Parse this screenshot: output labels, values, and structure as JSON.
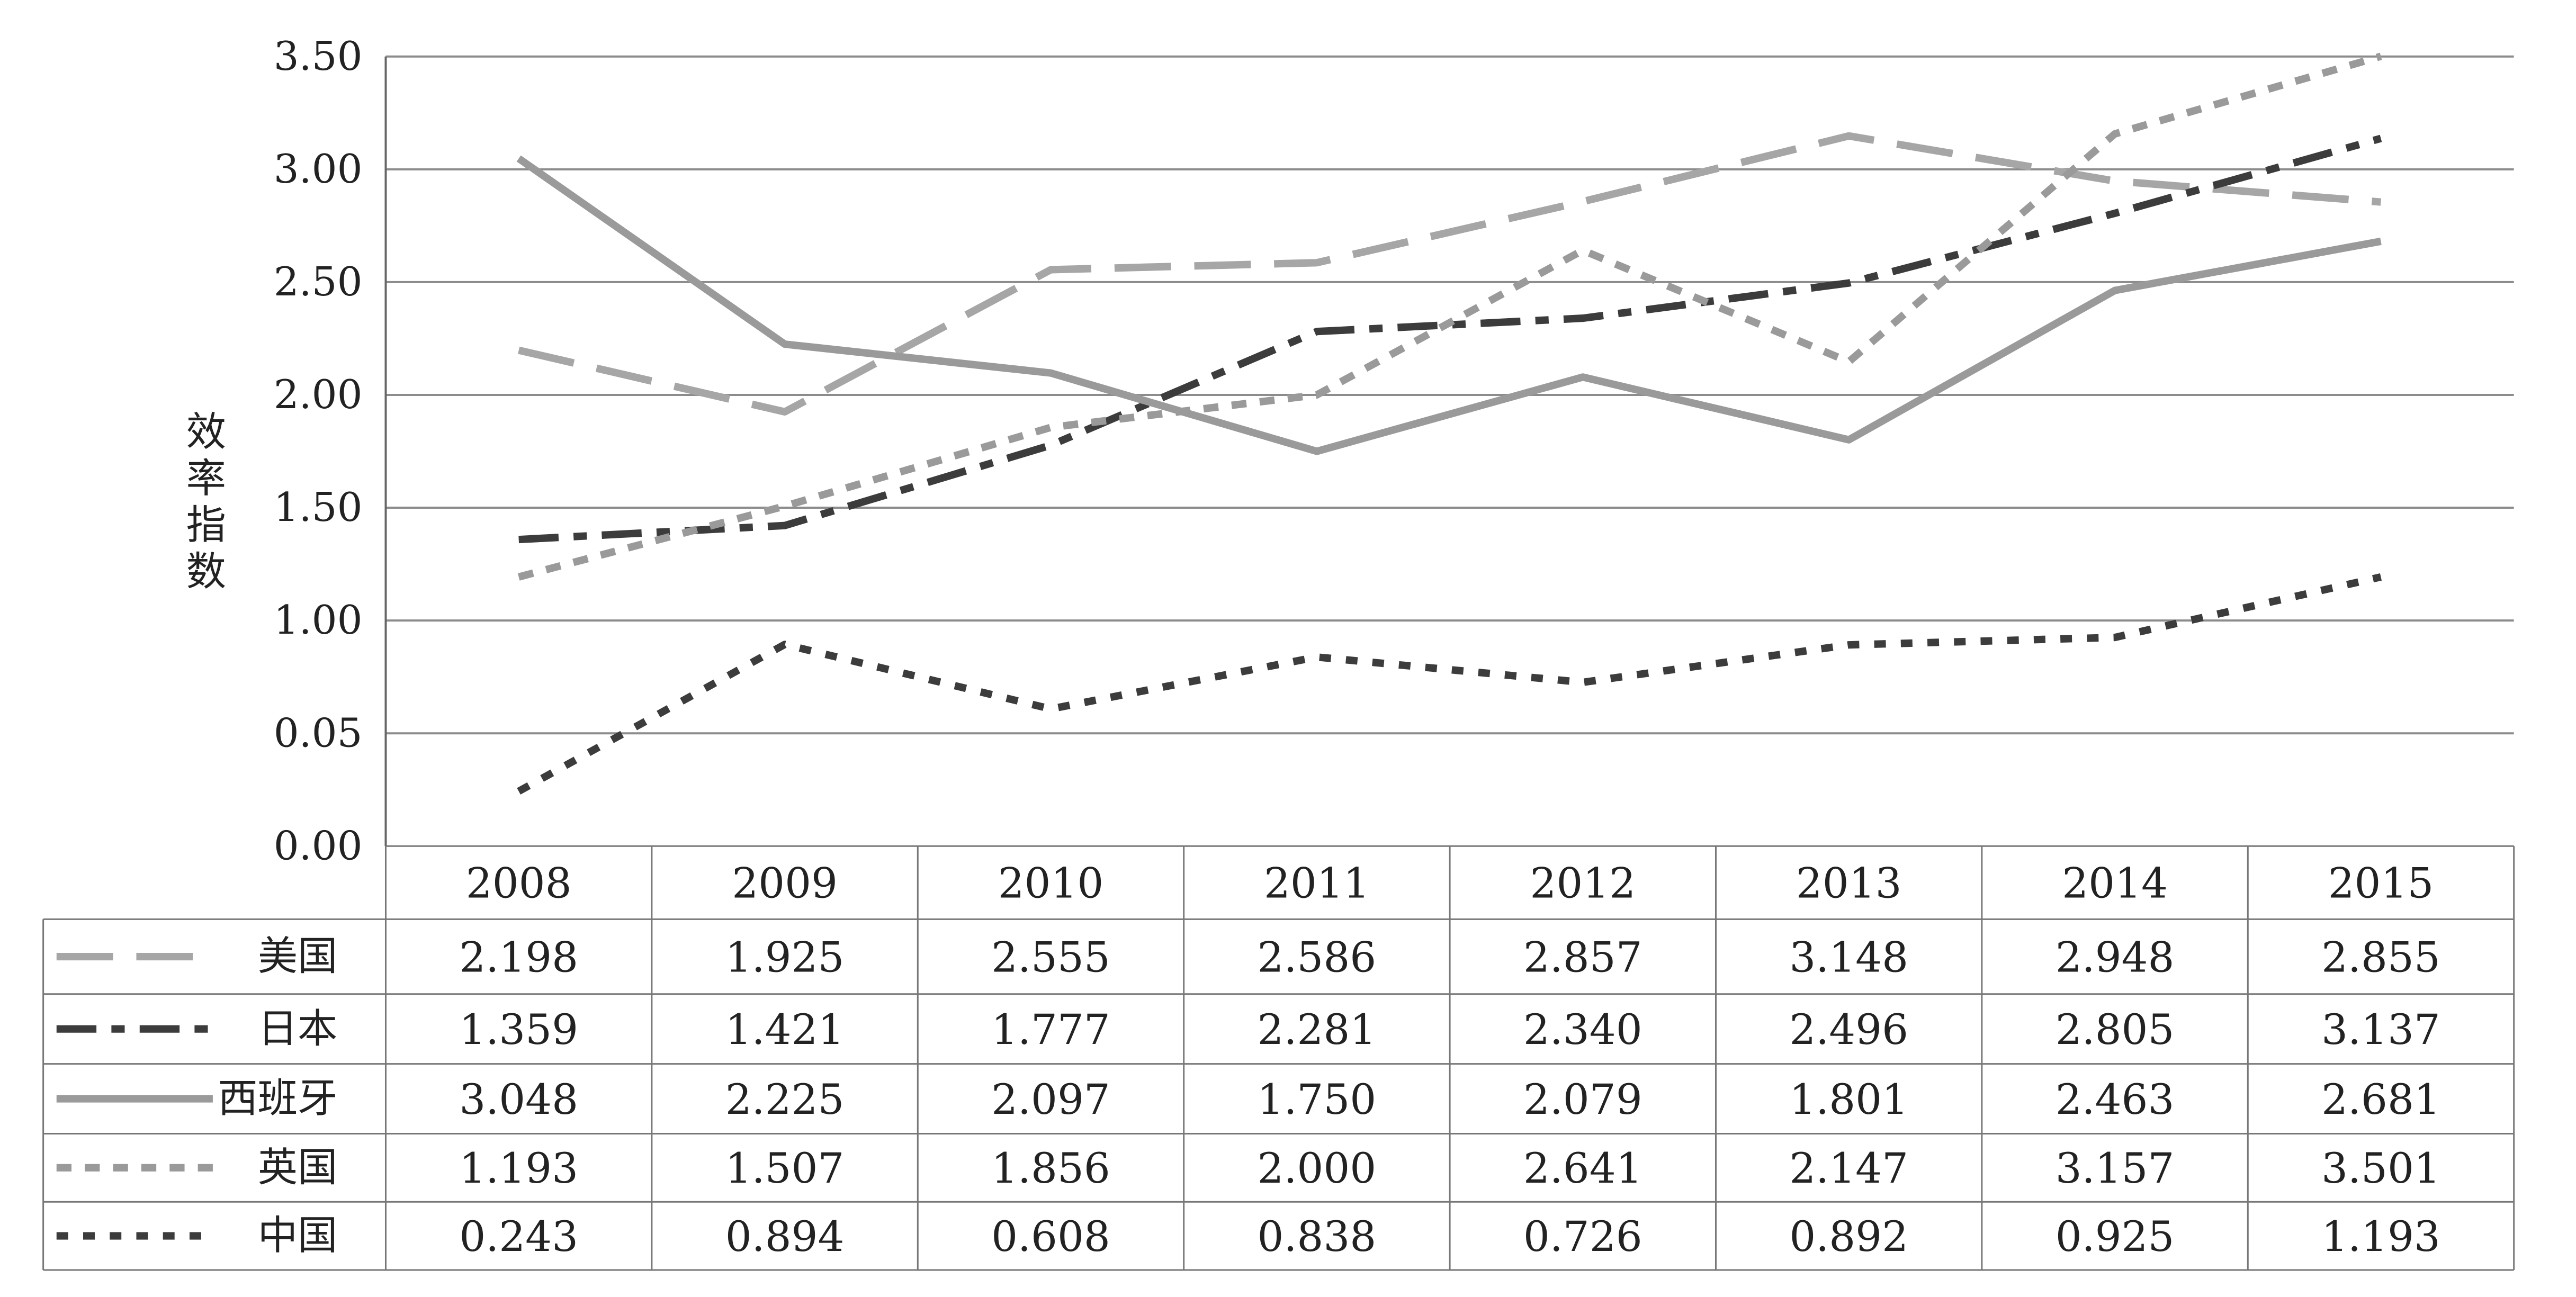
{
  "chart_data": {
    "type": "line",
    "title": "",
    "xlabel": "",
    "ylabel": "效率指数",
    "ylim": [
      0,
      3.5
    ],
    "y_tick_labels": [
      "0.00",
      "0.05",
      "1.00",
      "1.50",
      "2.00",
      "2.50",
      "3.00",
      "3.50"
    ],
    "grid": true,
    "legend": "data-table-left",
    "categories": [
      "2008",
      "2009",
      "2010",
      "2011",
      "2012",
      "2013",
      "2014",
      "2015"
    ],
    "series": [
      {
        "name": "美国",
        "color": "#a6a6a6",
        "dash": "long-dash",
        "values": [
          2.198,
          1.925,
          2.555,
          2.586,
          2.857,
          3.148,
          2.948,
          2.855
        ],
        "labels": [
          "2.198",
          "1.925",
          "2.555",
          "2.586",
          "2.857",
          "3.148",
          "2.948",
          "2.855"
        ]
      },
      {
        "name": "日本",
        "color": "#3c3c3c",
        "dash": "long-dash-dot",
        "values": [
          1.359,
          1.421,
          1.777,
          2.281,
          2.34,
          2.496,
          2.805,
          3.137
        ],
        "labels": [
          "1.359",
          "1.421",
          "1.777",
          "2.281",
          "2.340",
          "2.496",
          "2.805",
          "3.137"
        ]
      },
      {
        "name": "西班牙",
        "color": "#9a9a9a",
        "dash": "solid",
        "values": [
          3.048,
          2.225,
          2.097,
          1.75,
          2.079,
          1.801,
          2.463,
          2.681
        ],
        "labels": [
          "3.048",
          "2.225",
          "2.097",
          "1.750",
          "2.079",
          "1.801",
          "2.463",
          "2.681"
        ]
      },
      {
        "name": "英国",
        "color": "#9a9a9a",
        "dash": "short-dash",
        "values": [
          1.193,
          1.507,
          1.856,
          2.0,
          2.641,
          2.147,
          3.157,
          3.501
        ],
        "labels": [
          "1.193",
          "1.507",
          "1.856",
          "2.000",
          "2.641",
          "2.147",
          "3.157",
          "3.501"
        ]
      },
      {
        "name": "中国",
        "color": "#3c3c3c",
        "dash": "dot",
        "values": [
          0.243,
          0.894,
          0.608,
          0.838,
          0.726,
          0.892,
          0.925,
          1.193
        ],
        "labels": [
          "0.243",
          "0.894",
          "0.608",
          "0.838",
          "0.726",
          "0.892",
          "0.925",
          "1.193"
        ]
      }
    ]
  }
}
